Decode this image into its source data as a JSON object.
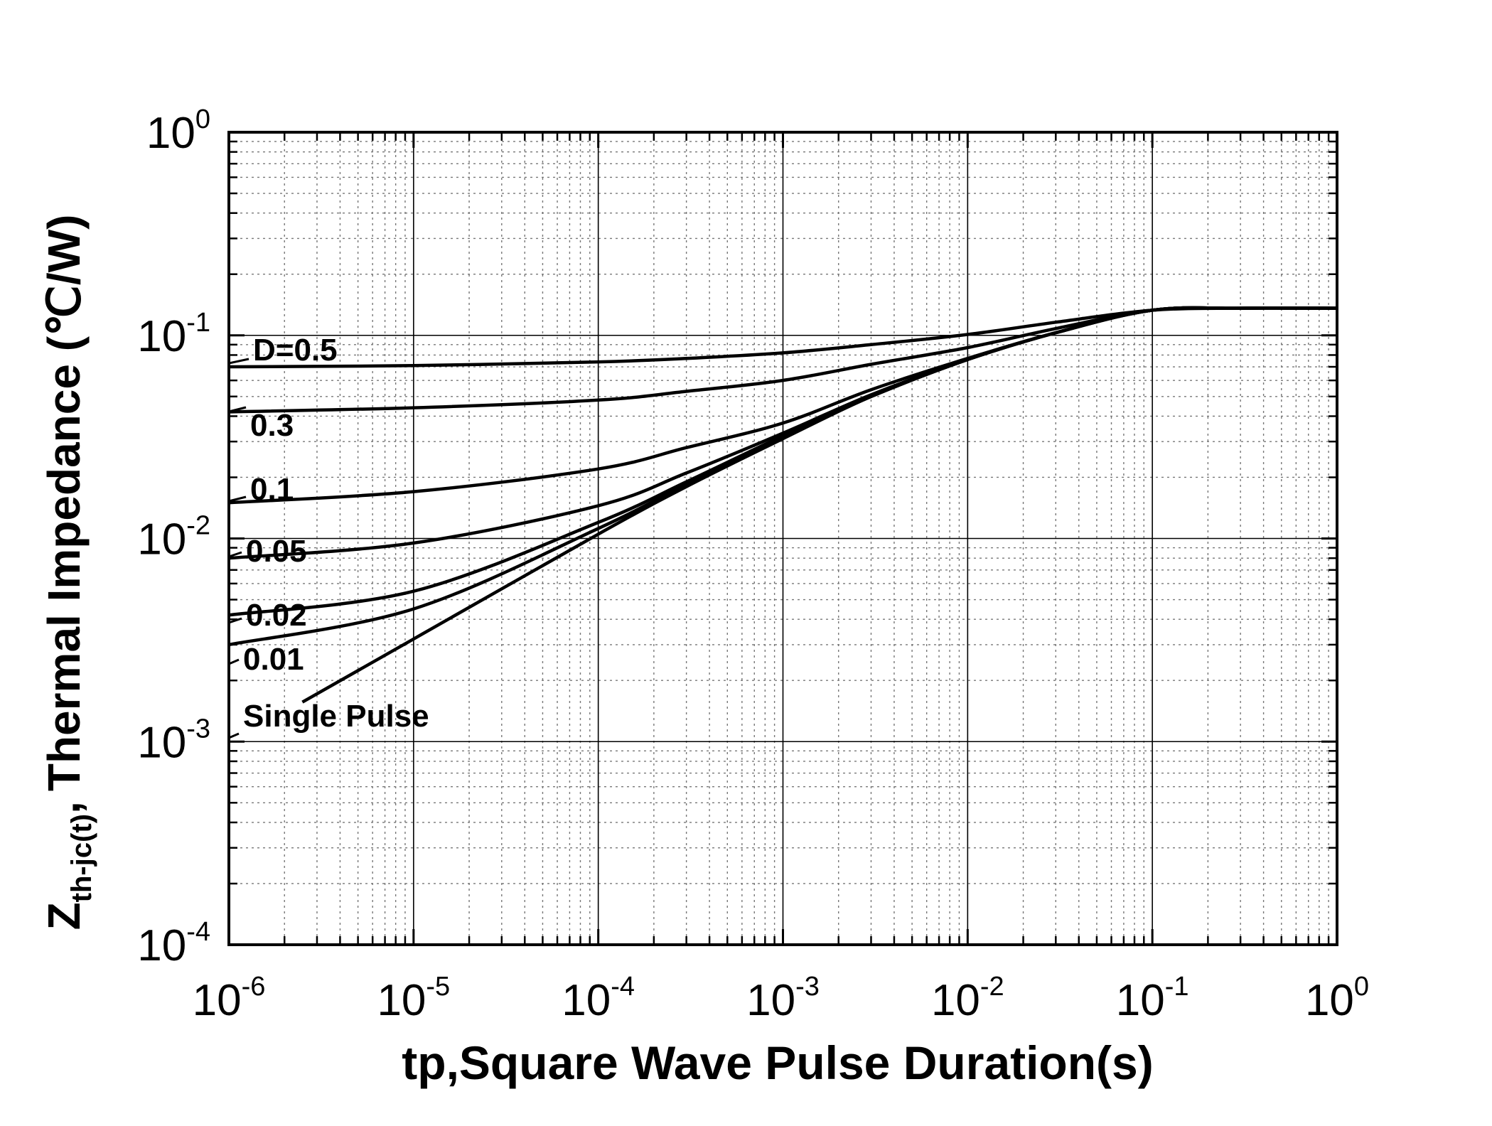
{
  "chart_data": {
    "type": "line",
    "title": "",
    "xscale": "log",
    "yscale": "log",
    "xlim": [
      1e-06,
      1
    ],
    "ylim": [
      0.0001,
      1
    ],
    "grid": true,
    "legend": "none",
    "xlabel": "tp,Square Wave Pulse Duration(s)",
    "ylabel": {
      "symbol": "Z",
      "subscript": "th-jc(t)",
      "separator": ",",
      "text": "Thermal  Impedance (",
      "unit": "℃/W)"
    },
    "x_ticks": [
      {
        "base": "10",
        "exp": "-6"
      },
      {
        "base": "10",
        "exp": "-5"
      },
      {
        "base": "10",
        "exp": "-4"
      },
      {
        "base": "10",
        "exp": "-3"
      },
      {
        "base": "10",
        "exp": "-2"
      },
      {
        "base": "10",
        "exp": "-1"
      },
      {
        "base": "10",
        "exp": "0"
      }
    ],
    "y_ticks": [
      {
        "base": "10",
        "exp": "-4"
      },
      {
        "base": "10",
        "exp": "-3"
      },
      {
        "base": "10",
        "exp": "-2"
      },
      {
        "base": "10",
        "exp": "-1"
      },
      {
        "base": "10",
        "exp": "0"
      }
    ],
    "x": [
      1e-06,
      1e-05,
      0.0001,
      0.0003,
      0.001,
      0.003,
      0.01,
      0.03,
      0.1,
      0.3,
      1
    ],
    "series": [
      {
        "name": "D=0.5",
        "label": "D=0.5",
        "values": [
          0.07,
          0.071,
          0.074,
          0.077,
          0.082,
          0.09,
          0.101,
          0.116,
          0.133,
          0.136,
          0.136
        ]
      },
      {
        "name": "0.3",
        "label": "0.3",
        "values": [
          0.042,
          0.044,
          0.048,
          0.053,
          0.06,
          0.072,
          0.087,
          0.108,
          0.133,
          0.136,
          0.136
        ]
      },
      {
        "name": "0.1",
        "label": "0.1",
        "values": [
          0.015,
          0.017,
          0.022,
          0.028,
          0.037,
          0.054,
          0.077,
          0.103,
          0.133,
          0.136,
          0.136
        ]
      },
      {
        "name": "0.05",
        "label": "0.05",
        "values": [
          0.008,
          0.0095,
          0.0145,
          0.021,
          0.033,
          0.051,
          0.076,
          0.103,
          0.133,
          0.136,
          0.136
        ]
      },
      {
        "name": "0.02",
        "label": "0.02",
        "values": [
          0.0042,
          0.0055,
          0.012,
          0.019,
          0.032,
          0.05,
          0.076,
          0.103,
          0.133,
          0.136,
          0.136
        ]
      },
      {
        "name": "0.01",
        "label": "0.01",
        "values": [
          0.003,
          0.0045,
          0.0112,
          0.0185,
          0.0315,
          0.05,
          0.076,
          0.103,
          0.133,
          0.136,
          0.136
        ]
      },
      {
        "name": "Single Pulse",
        "label": "Single Pulse",
        "x_start": 2.5e-06,
        "values": [
          null,
          0.0032,
          0.0105,
          0.018,
          0.031,
          0.05,
          0.076,
          0.103,
          0.133,
          0.136,
          0.136
        ]
      }
    ]
  }
}
